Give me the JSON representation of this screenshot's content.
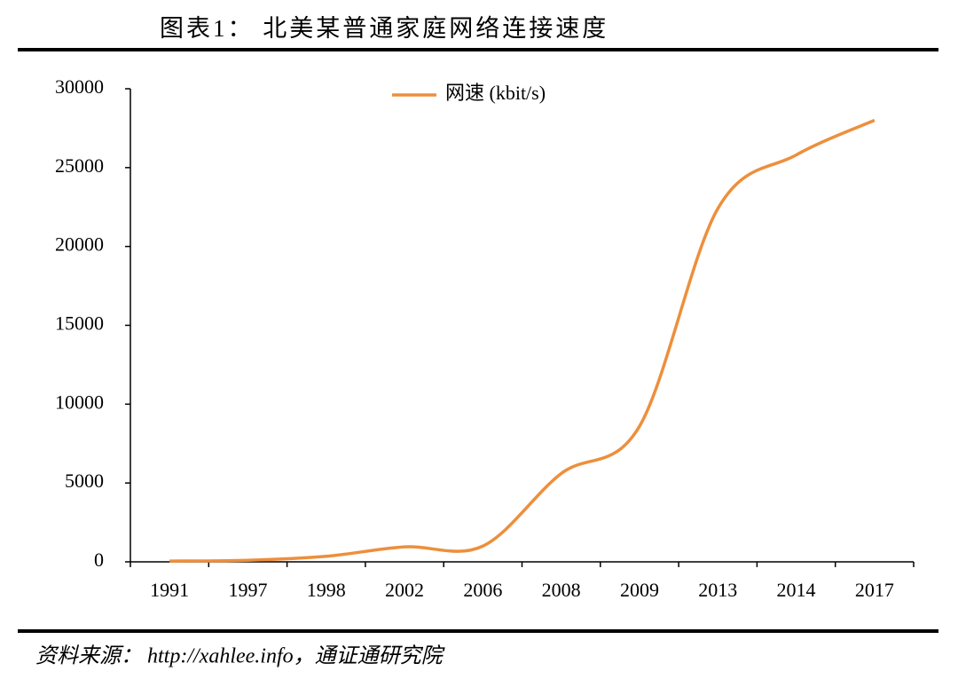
{
  "chart_data": {
    "type": "line",
    "title": "图表1：  北美某普通家庭网络连接速度",
    "source": "资料来源：  http://xahlee.info，通证通研究院",
    "categories": [
      "1991",
      "1997",
      "1998",
      "2002",
      "2006",
      "2008",
      "2009",
      "2013",
      "2014",
      "2017"
    ],
    "series": [
      {
        "name": "网速 (kbit/s)",
        "color": "#ed8f3c",
        "values": [
          50,
          100,
          350,
          950,
          1000,
          5600,
          8600,
          22400,
          25800,
          28000
        ]
      }
    ],
    "ylim": [
      0,
      30000
    ],
    "yticks": [
      0,
      5000,
      10000,
      15000,
      20000,
      25000,
      30000
    ],
    "legend": "top"
  }
}
